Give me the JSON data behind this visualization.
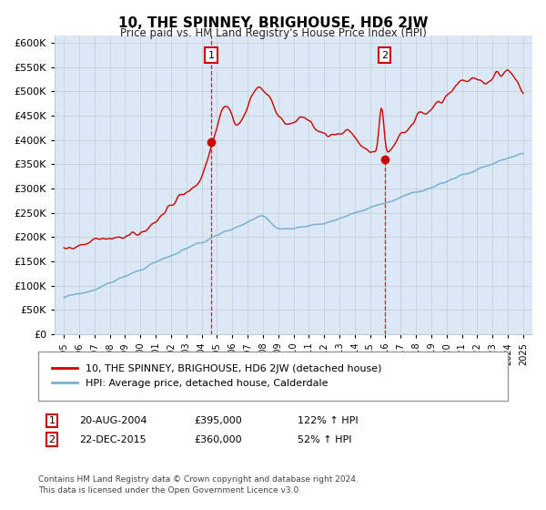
{
  "title": "10, THE SPINNEY, BRIGHOUSE, HD6 2JW",
  "subtitle": "Price paid vs. HM Land Registry's House Price Index (HPI)",
  "yticks": [
    0,
    50000,
    100000,
    150000,
    200000,
    250000,
    300000,
    350000,
    400000,
    450000,
    500000,
    550000,
    600000
  ],
  "ylim": [
    0,
    620000
  ],
  "sale1_year": 2004.625,
  "sale1_price": 395000,
  "sale2_year": 2015.958,
  "sale2_price": 360000,
  "sale1_date_str": "20-AUG-2004",
  "sale2_date_str": "22-DEC-2015",
  "sale1_hpi": "122% ↑ HPI",
  "sale2_hpi": "52% ↑ HPI",
  "legend_line1": "10, THE SPINNEY, BRIGHOUSE, HD6 2JW (detached house)",
  "legend_line2": "HPI: Average price, detached house, Calderdale",
  "footer1": "Contains HM Land Registry data © Crown copyright and database right 2024.",
  "footer2": "This data is licensed under the Open Government Licence v3.0.",
  "hpi_color": "#7ab0d4",
  "price_color": "#cc0000",
  "bg_color": "#dce8f5",
  "grid_color": "#c0ccd8"
}
